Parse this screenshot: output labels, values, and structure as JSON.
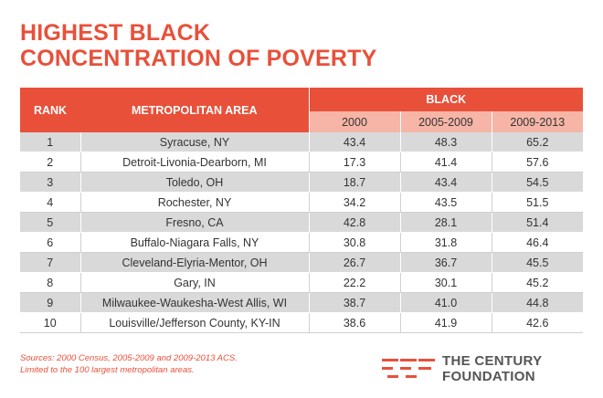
{
  "title": {
    "line1": "HIGHEST BLACK",
    "line2": "CONCENTRATION OF POVERTY"
  },
  "table": {
    "headers": {
      "rank": "RANK",
      "area": "METROPOLITAN AREA",
      "group": "BLACK"
    },
    "years": [
      "2000",
      "2005-2009",
      "2009-2013"
    ],
    "rows": [
      {
        "rank": "1",
        "area": "Syracuse, NY",
        "v2000": "43.4",
        "v2005": "48.3",
        "v2009": "65.2"
      },
      {
        "rank": "2",
        "area": "Detroit-Livonia-Dearborn, MI",
        "v2000": "17.3",
        "v2005": "41.4",
        "v2009": "57.6"
      },
      {
        "rank": "3",
        "area": "Toledo, OH",
        "v2000": "18.7",
        "v2005": "43.4",
        "v2009": "54.5"
      },
      {
        "rank": "4",
        "area": "Rochester, NY",
        "v2000": "34.2",
        "v2005": "43.5",
        "v2009": "51.5"
      },
      {
        "rank": "5",
        "area": "Fresno, CA",
        "v2000": "42.8",
        "v2005": "28.1",
        "v2009": "51.4"
      },
      {
        "rank": "6",
        "area": "Buffalo-Niagara Falls, NY",
        "v2000": "30.8",
        "v2005": "31.8",
        "v2009": "46.4"
      },
      {
        "rank": "7",
        "area": "Cleveland-Elyria-Mentor, OH",
        "v2000": "26.7",
        "v2005": "36.7",
        "v2009": "45.5"
      },
      {
        "rank": "8",
        "area": "Gary, IN",
        "v2000": "22.2",
        "v2005": "30.1",
        "v2009": "45.2"
      },
      {
        "rank": "9",
        "area": "Milwaukee-Waukesha-West Allis, WI",
        "v2000": "38.7",
        "v2005": "41.0",
        "v2009": "44.8"
      },
      {
        "rank": "10",
        "area": "Louisville/Jefferson County, KY-IN",
        "v2000": "38.6",
        "v2005": "41.9",
        "v2009": "42.6"
      }
    ]
  },
  "source": {
    "line1": "Sources: 2000 Census,  2005-2009 and 2009-2013 ACS.",
    "line2": "Limited to the 100 largest metropolitan areas."
  },
  "logo": {
    "line1": "THE CENTURY",
    "line2": "FOUNDATION",
    "icon": "tcf-stripes-logo"
  },
  "colors": {
    "accent": "#e8503a",
    "header_light": "#f6b5a6",
    "row_shade": "#d9d9d9"
  }
}
